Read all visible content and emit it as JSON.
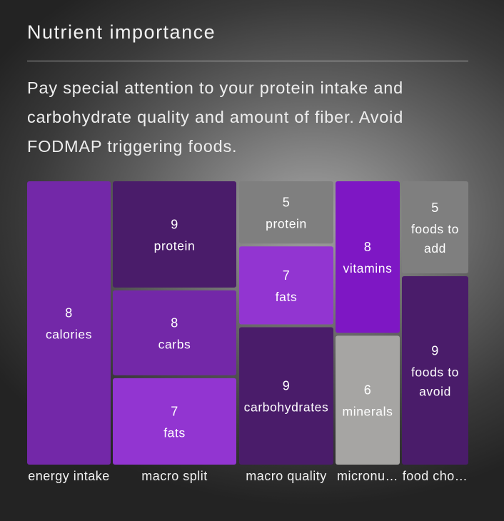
{
  "header": {
    "title": "Nutrient importance",
    "description": "Pay special attention to your protein intake and carbohydrate quality and amount of fiber. Avoid FODMAP triggering foods."
  },
  "colors": {
    "light_purple": "#9235d1",
    "medium_purple": "#7328a8",
    "dark_purple": "#4a1c6a",
    "violet": "#7e17c4",
    "gray": "#7f7f7f",
    "light_gray": "#a6a5a3"
  },
  "chart_data": {
    "type": "treemap",
    "groups": [
      {
        "label": "energy intake",
        "items": [
          {
            "label": "calories",
            "value": 8,
            "color": "#7328a8"
          }
        ]
      },
      {
        "label": "macro split",
        "items": [
          {
            "label": "protein",
            "value": 9,
            "color": "#4a1c6a"
          },
          {
            "label": "carbs",
            "value": 8,
            "color": "#7328a8"
          },
          {
            "label": "fats",
            "value": 7,
            "color": "#9235d1"
          }
        ]
      },
      {
        "label": "macro quality",
        "items": [
          {
            "label": "protein",
            "value": 5,
            "color": "#7f7f7f"
          },
          {
            "label": "fats",
            "value": 7,
            "color": "#9235d1"
          },
          {
            "label": "carbohydrates",
            "value": 9,
            "color": "#4a1c6a"
          }
        ]
      },
      {
        "label": "micronu…",
        "items": [
          {
            "label": "vitamins",
            "value": 8,
            "color": "#7e17c4"
          },
          {
            "label": "minerals",
            "value": 6,
            "color": "#a6a5a3"
          }
        ]
      },
      {
        "label": "food cho…",
        "items": [
          {
            "label": "foods to add",
            "value": 5,
            "color": "#7f7f7f"
          },
          {
            "label": "foods to avoid",
            "value": 9,
            "color": "#4a1c6a"
          }
        ]
      }
    ]
  }
}
